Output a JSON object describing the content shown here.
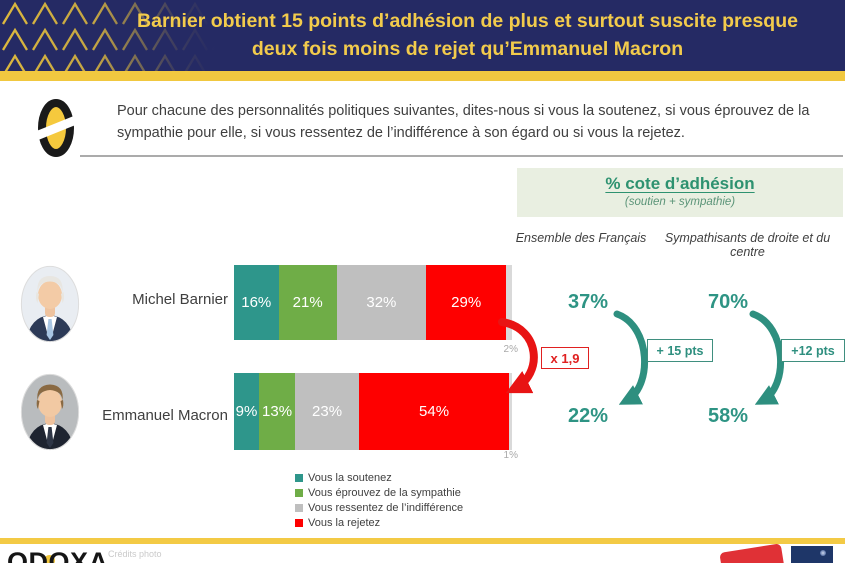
{
  "banner": {
    "title_line1": "Barnier obtient 15 points d’adhésion de plus et surtout suscite presque",
    "title_line2": "deux fois moins de rejet qu’Emmanuel Macron"
  },
  "question": {
    "text": "Pour chacune des personnalités politiques suivantes, dites-nous si vous la soutenez, si vous éprouvez de la sympathie pour elle, si vous ressentez de l’indifférence à son égard ou si vous la rejetez."
  },
  "adhesion_header": {
    "title": "% cote d’adhésion",
    "subtitle": "(soutien + sympathie)"
  },
  "column_headers": {
    "ensemble": "Ensemble des Français",
    "sympathisants": "Sympathisants de droite et du centre"
  },
  "chart_data": {
    "type": "bar",
    "stacked": true,
    "orientation": "horizontal",
    "unit": "%",
    "categories": [
      "Michel Barnier",
      "Emmanuel Macron"
    ],
    "series": [
      {
        "name": "Vous la soutenez",
        "color": "#2E968B",
        "values": [
          16,
          9
        ]
      },
      {
        "name": "Vous éprouvez de la sympathie",
        "color": "#6FAD47",
        "values": [
          21,
          13
        ]
      },
      {
        "name": "Vous ressentez de l’indifférence",
        "color": "#BFBFBF",
        "values": [
          32,
          23
        ]
      },
      {
        "name": "Vous la rejetez",
        "color": "#FE0000",
        "values": [
          29,
          54
        ]
      }
    ],
    "no_opinion": {
      "color": "#D9D9D9",
      "values": [
        2,
        1
      ],
      "labels": [
        "2%",
        "1%"
      ]
    },
    "adhesion_scores": {
      "ensemble": [
        "37%",
        "22%"
      ],
      "sympathisants": [
        "70%",
        "58%"
      ]
    },
    "annotations": {
      "rejection_ratio": "x 1,9",
      "ensemble_gap": "+ 15 pts",
      "sympathisants_gap": "+12 pts"
    },
    "legend_position": "bottom",
    "axis": "none"
  },
  "footer": {
    "brand": "ODOXA",
    "credits": "Crédits photo"
  },
  "colors": {
    "navy": "#252A64",
    "gold": "#F1C840",
    "teal_accent": "#2E9484",
    "red_accent": "#E81414",
    "adhesion_box_bg": "#E9EFE1"
  }
}
